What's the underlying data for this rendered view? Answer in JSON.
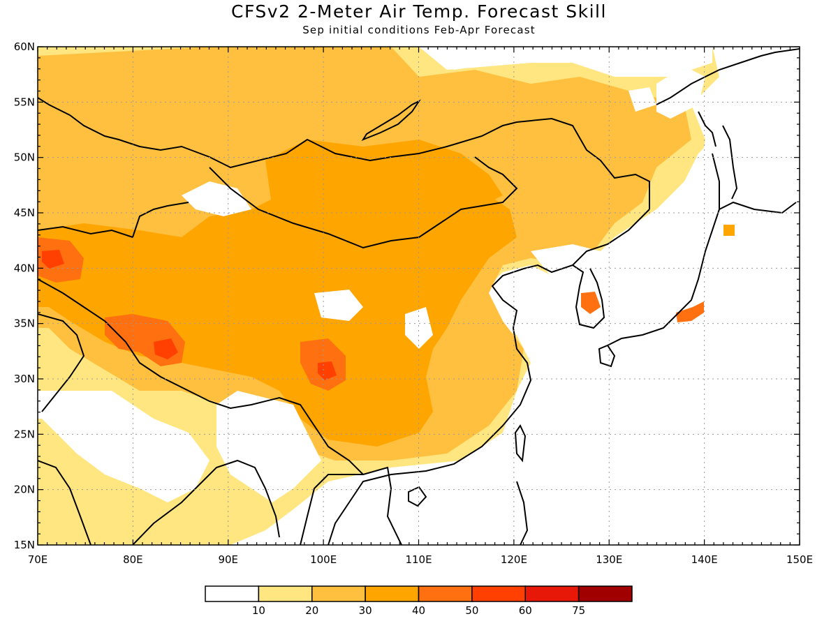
{
  "header": {
    "title": "CFSv2 2-Meter Air Temp. Forecast Skill",
    "subtitle": "Sep initial conditions  Feb-Apr Forecast"
  },
  "axes": {
    "lon_labels": [
      "70E",
      "80E",
      "90E",
      "100E",
      "110E",
      "120E",
      "130E",
      "140E",
      "150E"
    ],
    "lat_labels": [
      "15N",
      "20N",
      "25N",
      "30N",
      "35N",
      "40N",
      "45N",
      "50N",
      "55N",
      "60N"
    ],
    "lon_range": [
      70,
      150
    ],
    "lat_range": [
      15,
      60
    ]
  },
  "colorbar": {
    "labels": [
      "10",
      "20",
      "30",
      "40",
      "50",
      "60",
      "75"
    ],
    "colors": [
      "#ffffff",
      "#ffe680",
      "#ffc040",
      "#ffa500",
      "#ff7010",
      "#ff4000",
      "#e81808",
      "#a00000"
    ]
  },
  "skill_regions": [
    {
      "name": "northern-band",
      "level": 2
    },
    {
      "name": "mongolia",
      "level": 3
    },
    {
      "name": "tibet-west",
      "level": 4
    },
    {
      "name": "yunnan",
      "level": 4
    },
    {
      "name": "korea",
      "level": 4
    },
    {
      "name": "japan",
      "level": 4
    }
  ]
}
